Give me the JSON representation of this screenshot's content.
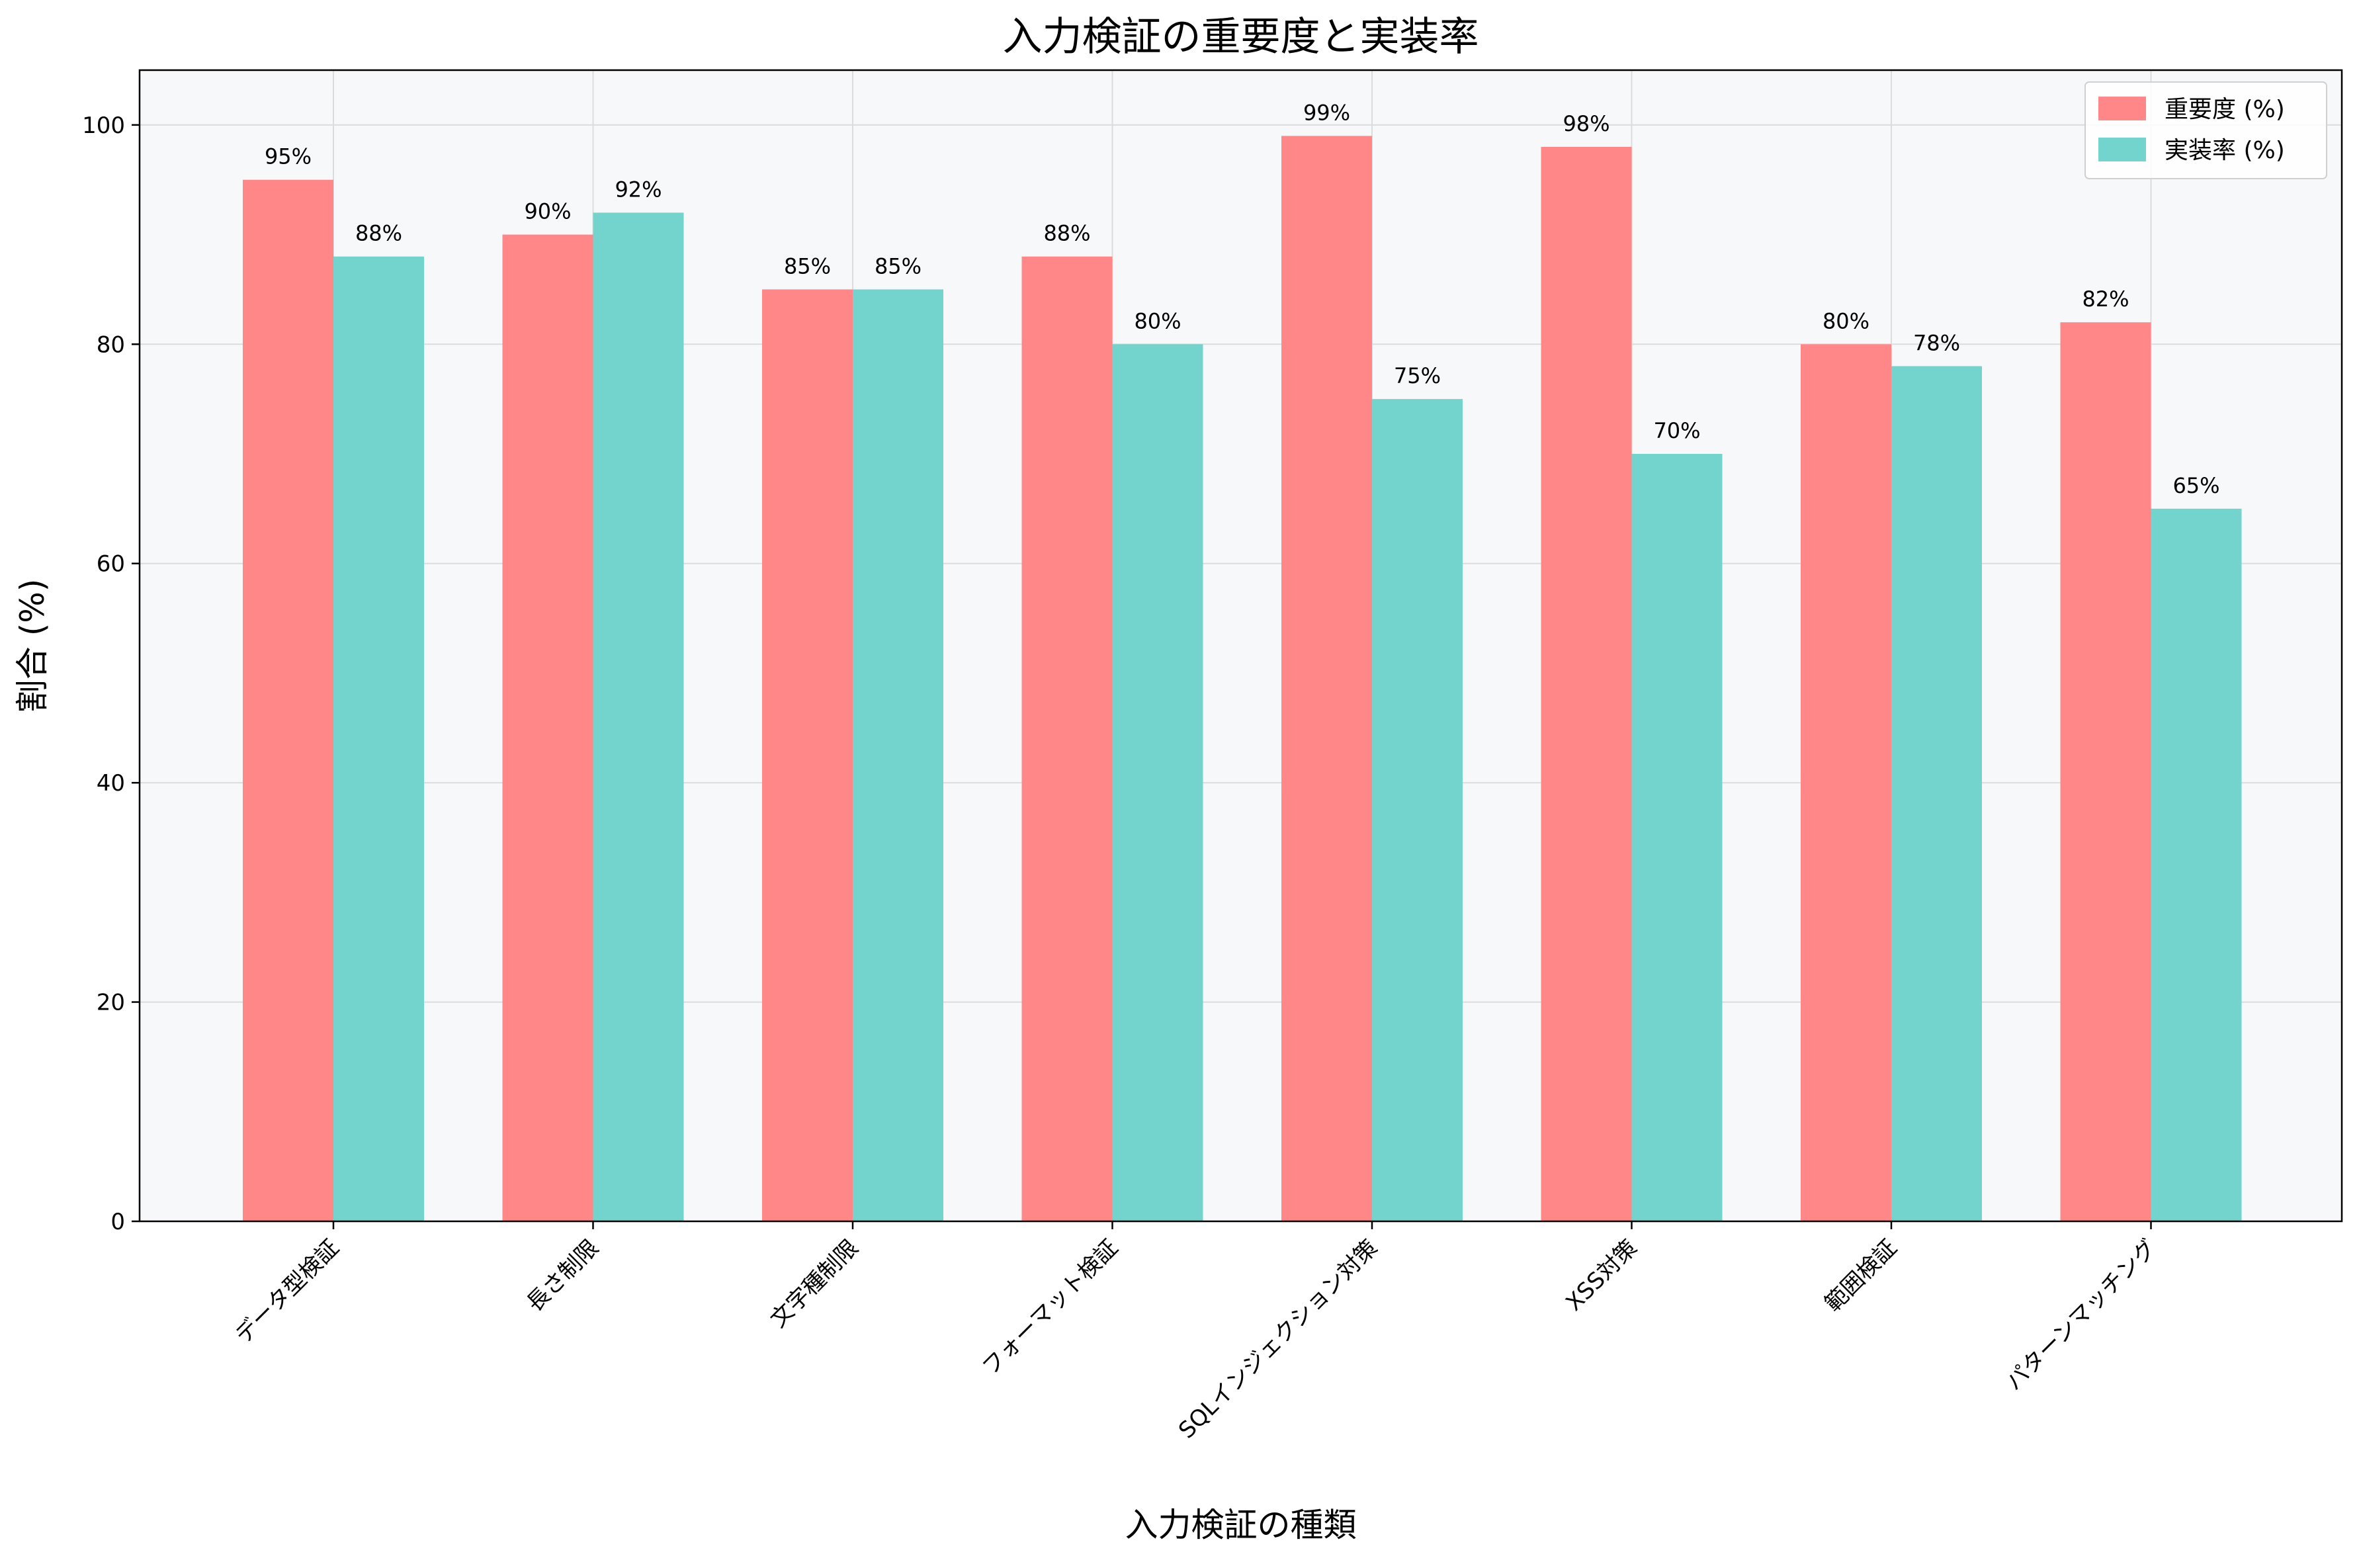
{
  "chart_data": {
    "type": "bar",
    "title": "入力検証の重要度と実装率",
    "xlabel": "入力検証の種類",
    "ylabel": "割合 (%)",
    "ylim": [
      0,
      105
    ],
    "yticks": [
      0,
      20,
      40,
      60,
      80,
      100
    ],
    "grid": true,
    "legend_position": "top-right",
    "categories": [
      "データ型検証",
      "長さ制限",
      "文字種制限",
      "フォーマット検証",
      "SQLインジェクション対策",
      "XSS対策",
      "範囲検証",
      "パターンマッチング"
    ],
    "series": [
      {
        "name": "重要度 (%)",
        "color": "#ff8787",
        "values": [
          95,
          90,
          85,
          88,
          99,
          98,
          80,
          82
        ]
      },
      {
        "name": "実装率 (%)",
        "color": "#72d4cc",
        "values": [
          88,
          92,
          85,
          80,
          75,
          70,
          78,
          65
        ]
      }
    ],
    "value_suffix": "%"
  }
}
